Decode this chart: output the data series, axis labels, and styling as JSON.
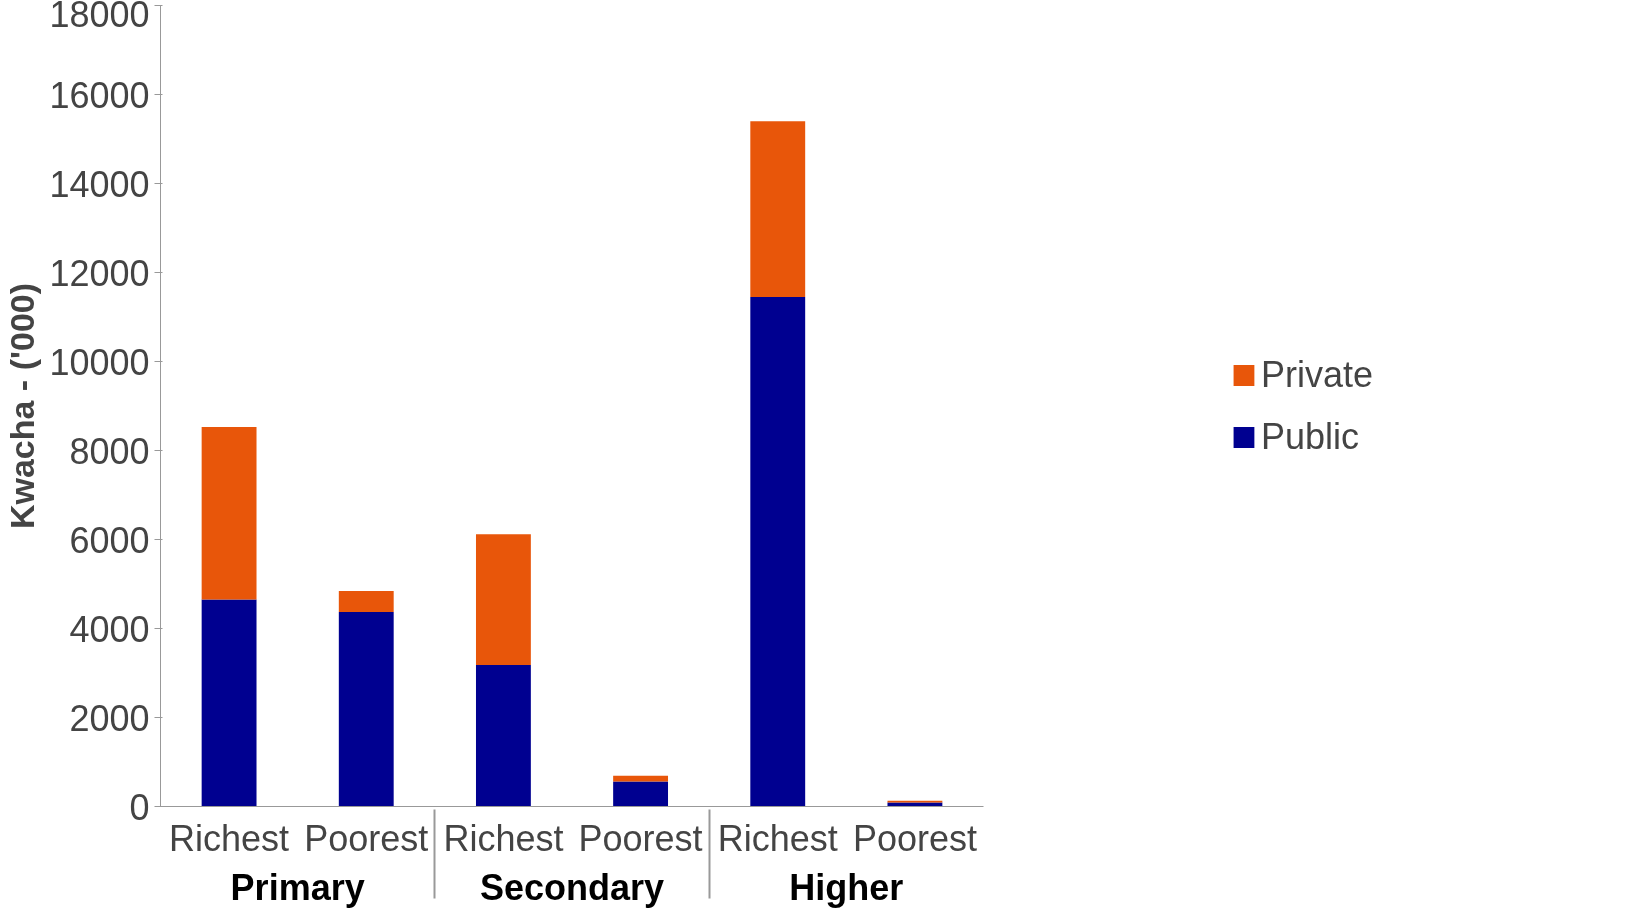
{
  "chart_data": {
    "type": "bar",
    "stacked": true,
    "ylabel": "Kwacha - ('000)",
    "categories": [
      "Richest",
      "Poorest",
      "Richest",
      "Poorest",
      "Richest",
      "Poorest"
    ],
    "annotations": [
      "Primary",
      "Secondary",
      "Higher"
    ],
    "series": [
      {
        "name": "Public",
        "color": "#000090",
        "values": [
          4650,
          4370,
          3180,
          560,
          11450,
          90
        ]
      },
      {
        "name": "Private",
        "color": "#e8560a",
        "values": [
          3880,
          470,
          2940,
          130,
          3950,
          40
        ]
      }
    ],
    "ylim": [
      0,
      18000
    ],
    "yticks": [
      0,
      2000,
      4000,
      6000,
      8000,
      10000,
      12000,
      14000,
      16000,
      18000
    ],
    "grid": false,
    "legend": "right"
  }
}
